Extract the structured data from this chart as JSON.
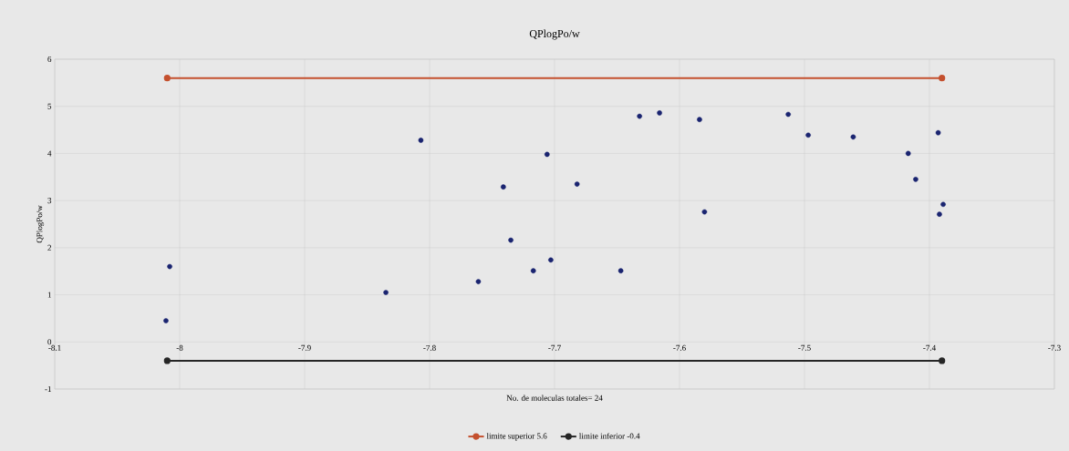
{
  "chart_data": {
    "type": "scatter",
    "title": "QPlogPo/w",
    "xlabel": "No. de moleculas totales= 24",
    "ylabel": "QPlogPo/w",
    "xlim": [
      -8.1,
      -7.3
    ],
    "xticks": [
      -8.1,
      -8,
      -7.9,
      -7.8,
      -7.7,
      -7.6,
      -7.5,
      -7.4,
      -7.3
    ],
    "ylim": [
      -1,
      6
    ],
    "yticks": [
      -1,
      0,
      1,
      2,
      3,
      4,
      5,
      6
    ],
    "grid": true,
    "legend": "bottom",
    "marker": "circle",
    "series": [
      {
        "type": "scatter",
        "color": "#1a2470",
        "x": [
          -8.011,
          -8.008,
          -7.835,
          -7.807,
          -7.761,
          -7.741,
          -7.735,
          -7.717,
          -7.706,
          -7.703,
          -7.682,
          -7.647,
          -7.632,
          -7.616,
          -7.584,
          -7.58,
          -7.513,
          -7.497,
          -7.461,
          -7.417,
          -7.411,
          -7.393,
          -7.389,
          -7.392
        ],
        "values": [
          0.45,
          1.6,
          1.05,
          4.28,
          1.28,
          3.29,
          2.16,
          1.51,
          3.98,
          1.74,
          3.35,
          1.51,
          4.79,
          4.86,
          4.72,
          2.76,
          4.83,
          4.39,
          4.35,
          4.0,
          3.45,
          4.44,
          2.92,
          2.71
        ]
      },
      {
        "type": "line",
        "name": "limite superior 5.6",
        "color": "#c4502e",
        "x": [
          -8.01,
          -7.39
        ],
        "values": [
          5.6,
          5.6
        ]
      },
      {
        "type": "line",
        "name": "limite inferior -0.4",
        "color": "#262626",
        "x": [
          -8.01,
          -7.39
        ],
        "values": [
          -0.4,
          -0.4
        ]
      }
    ]
  }
}
